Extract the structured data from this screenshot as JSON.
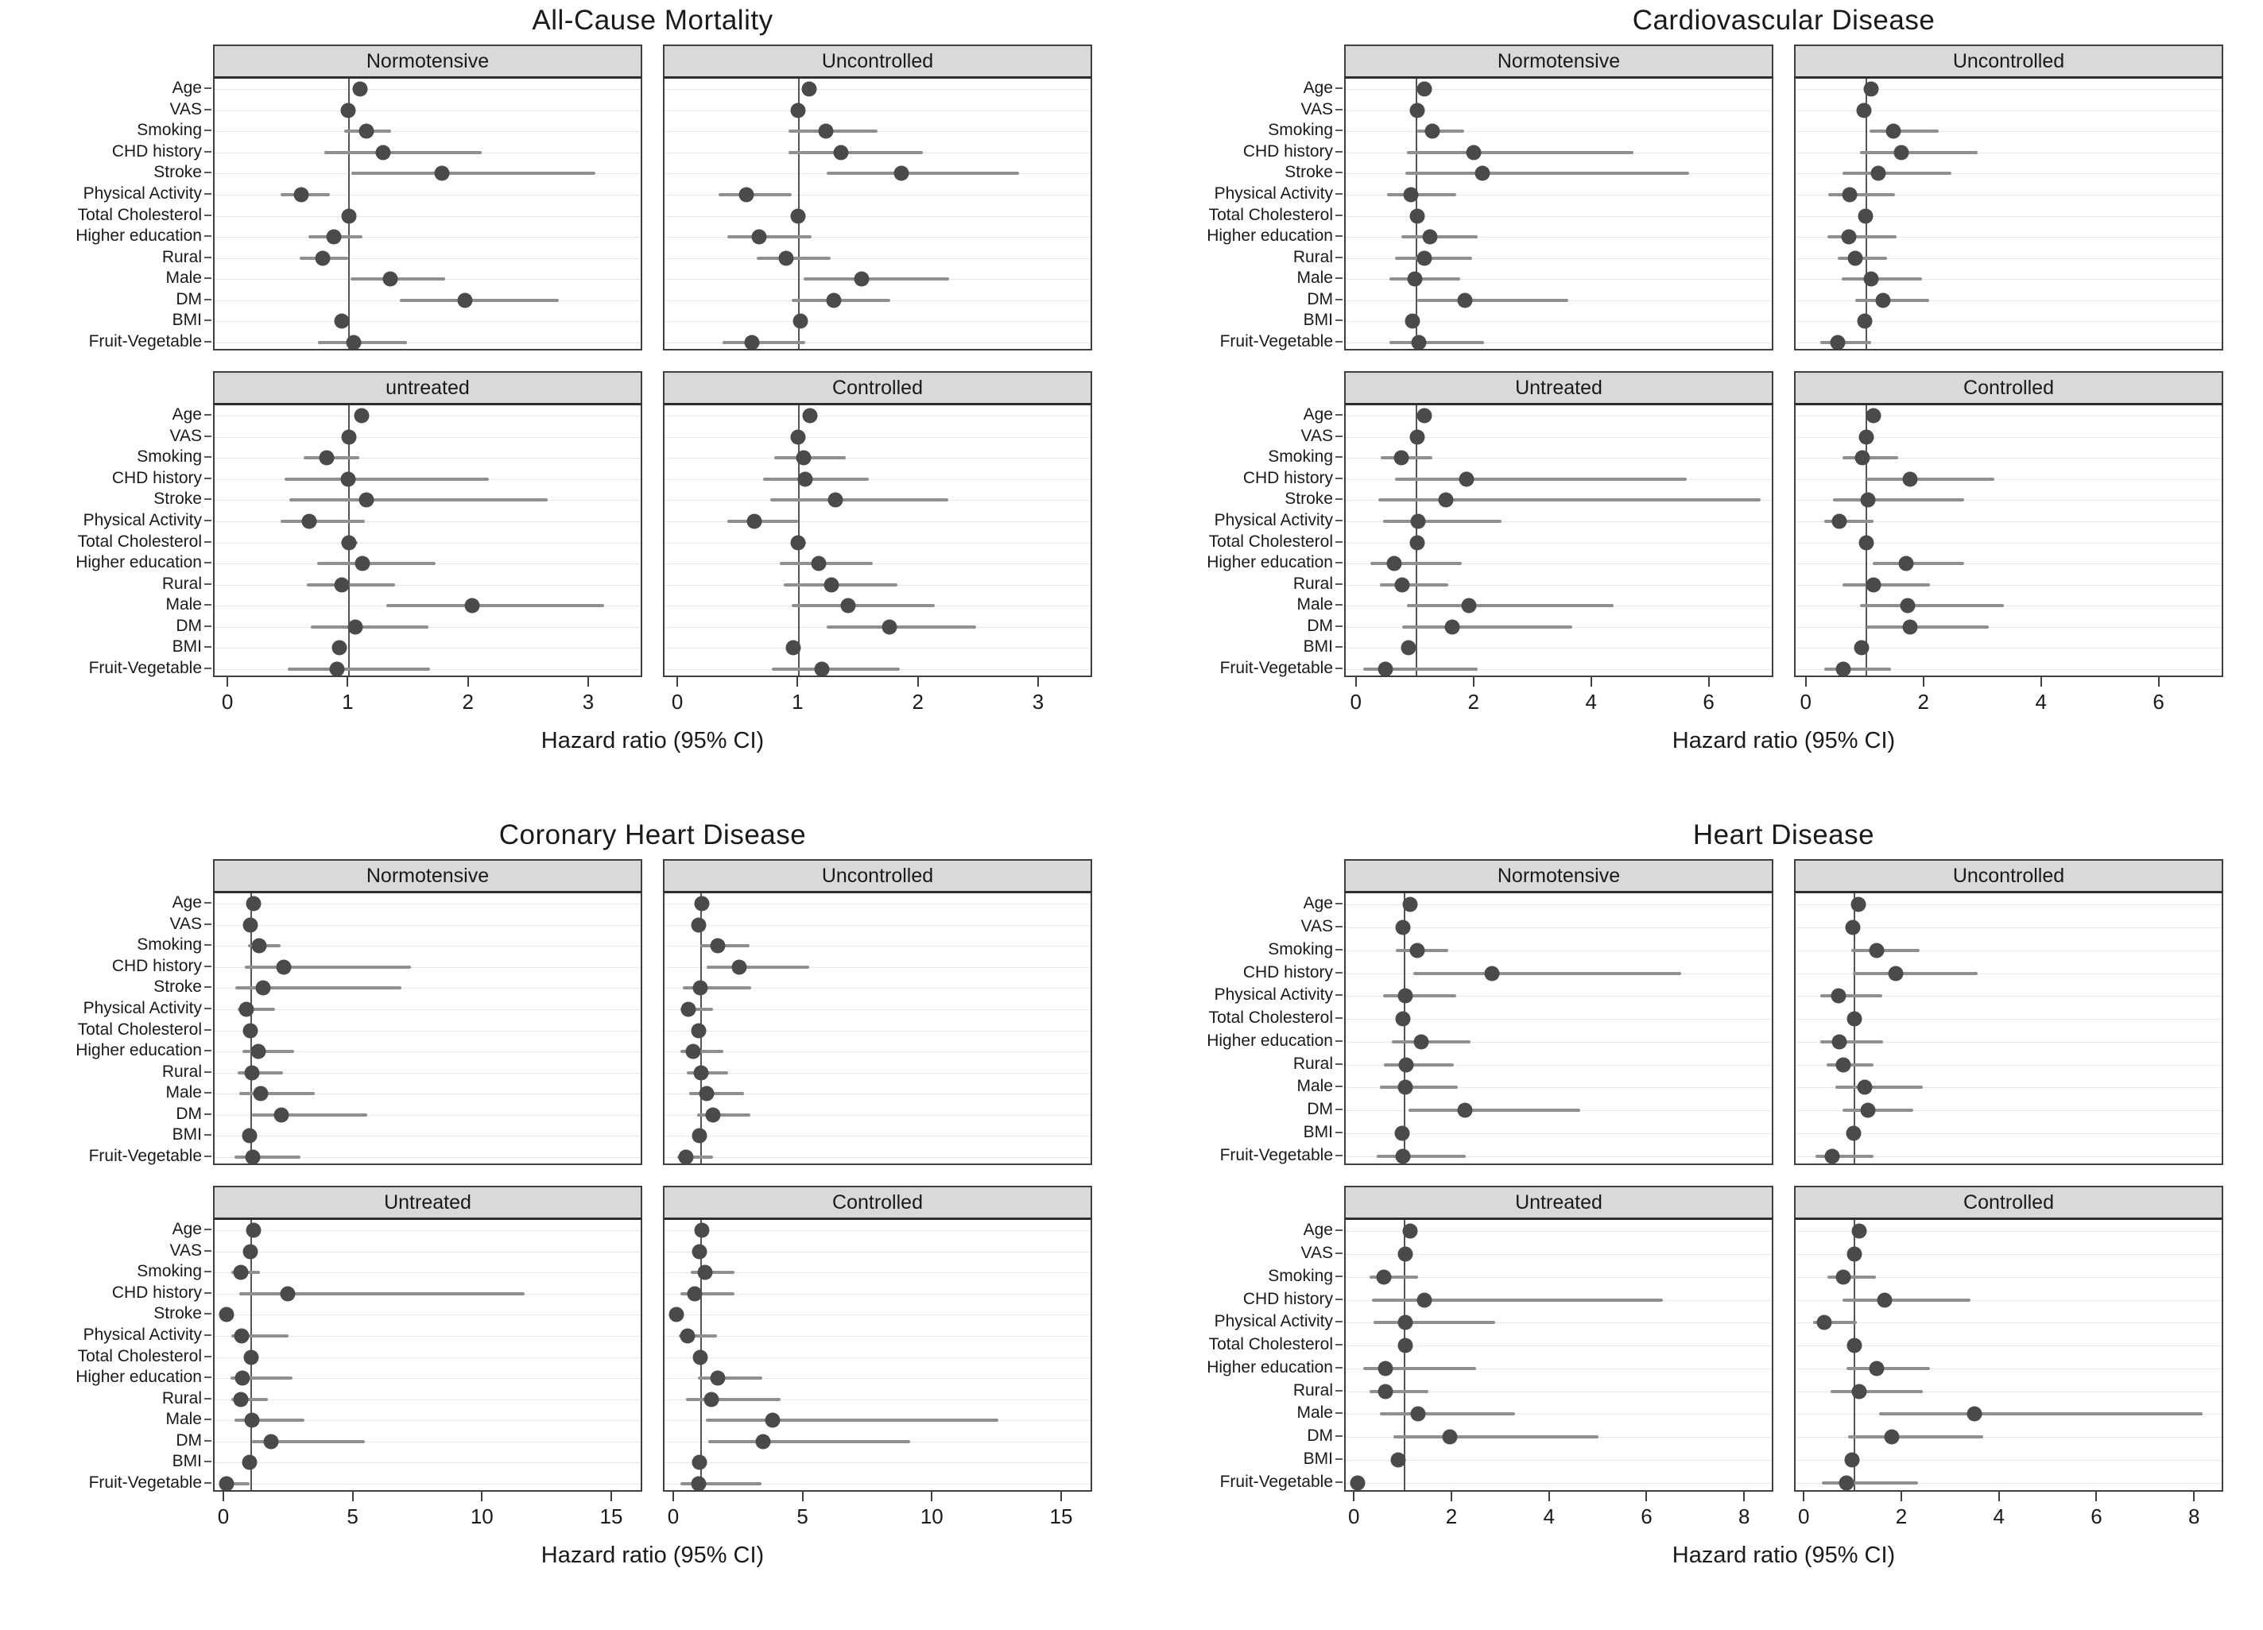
{
  "colors": {
    "dot": "#4a4a4a",
    "ci_line": "#8f8f8f",
    "reference_line": "#555555",
    "header_bg": "#d9d9d9",
    "panel_border": "#3f3f3f",
    "gridline": "#e7e7e7"
  },
  "chart_data": {
    "type": "scatter",
    "subtype": "forest-plot-grid",
    "note": "Four faceted forest plots of hazard ratios with 95% CI; vertical reference line at HR=1 in each panel.",
    "figures": [
      {
        "title": "All-Cause Mortality",
        "xlabel": "Hazard ratio (95% CI)",
        "x_ticks": [
          0,
          1,
          2,
          3
        ],
        "xlim": [
          -0.12,
          3.45
        ],
        "categories": [
          "Age",
          "VAS",
          "Smoking",
          "CHD history",
          "Stroke",
          "Physical Activity",
          "Total Cholesterol",
          "Higher education",
          "Rural",
          "Male",
          "DM",
          "BMI",
          "Fruit-Vegetable"
        ],
        "panels": [
          {
            "label": "Normotensive",
            "hr": [
              1.09,
              0.99,
              1.14,
              1.28,
              1.77,
              0.6,
              1.0,
              0.87,
              0.78,
              1.34,
              1.96,
              0.94,
              1.04
            ],
            "lo": [
              1.04,
              0.96,
              0.96,
              0.79,
              1.02,
              0.43,
              0.95,
              0.66,
              0.59,
              1.01,
              1.42,
              0.9,
              0.74
            ],
            "hi": [
              1.14,
              1.02,
              1.35,
              2.1,
              3.05,
              0.84,
              1.05,
              1.11,
              0.99,
              1.8,
              2.74,
              0.98,
              1.48
            ]
          },
          {
            "label": "Uncontrolled",
            "hr": [
              1.08,
              0.99,
              1.22,
              1.35,
              1.85,
              0.56,
              0.99,
              0.67,
              0.89,
              1.52,
              1.29,
              1.01,
              0.61
            ],
            "lo": [
              1.03,
              0.95,
              0.91,
              0.91,
              1.23,
              0.33,
              0.93,
              0.4,
              0.65,
              1.04,
              0.94,
              0.96,
              0.36
            ],
            "hi": [
              1.13,
              1.03,
              1.65,
              2.03,
              2.83,
              0.94,
              1.05,
              1.1,
              1.26,
              2.25,
              1.76,
              1.06,
              1.05
            ]
          },
          {
            "label": "untreated",
            "hr": [
              1.1,
              1.0,
              0.81,
              0.99,
              1.14,
              0.67,
              1.0,
              1.11,
              0.94,
              2.02,
              1.05,
              0.92,
              0.9
            ],
            "lo": [
              1.05,
              0.95,
              0.62,
              0.46,
              0.5,
              0.43,
              0.93,
              0.73,
              0.65,
              1.31,
              0.68,
              0.87,
              0.49
            ],
            "hi": [
              1.16,
              1.05,
              1.08,
              2.16,
              2.65,
              1.13,
              1.07,
              1.72,
              1.38,
              3.12,
              1.66,
              0.98,
              1.67
            ]
          },
          {
            "label": "Controlled",
            "hr": [
              1.09,
              0.99,
              1.04,
              1.05,
              1.3,
              0.63,
              0.99,
              1.16,
              1.27,
              1.41,
              1.75,
              0.95,
              1.19
            ],
            "lo": [
              1.04,
              0.94,
              0.79,
              0.7,
              0.76,
              0.4,
              0.93,
              0.84,
              0.87,
              0.94,
              1.23,
              0.9,
              0.77
            ],
            "hi": [
              1.15,
              1.04,
              1.39,
              1.58,
              2.24,
              0.99,
              1.06,
              1.61,
              1.82,
              2.13,
              2.47,
              1.0,
              1.84
            ]
          }
        ]
      },
      {
        "title": "Cardiovascular Disease",
        "xlabel": "Hazard ratio (95% CI)",
        "x_ticks": [
          0,
          2,
          4,
          6
        ],
        "xlim": [
          -0.2,
          7.1
        ],
        "categories": [
          "Age",
          "VAS",
          "Smoking",
          "CHD history",
          "Stroke",
          "Physical Activity",
          "Total Cholesterol",
          "Higher education",
          "Rural",
          "Male",
          "DM",
          "BMI",
          "Fruit-Vegetable"
        ],
        "panels": [
          {
            "label": "Normotensive",
            "hr": [
              1.14,
              1.01,
              1.28,
              1.98,
              2.12,
              0.91,
              1.01,
              1.23,
              1.14,
              0.97,
              1.83,
              0.94,
              1.04
            ],
            "lo": [
              1.06,
              0.96,
              1.01,
              0.84,
              0.81,
              0.5,
              0.95,
              0.74,
              0.64,
              0.54,
              1.01,
              0.88,
              0.54
            ],
            "hi": [
              1.23,
              1.06,
              1.81,
              4.7,
              5.64,
              1.68,
              1.07,
              2.05,
              1.95,
              1.75,
              3.59,
              1.0,
              2.15
            ]
          },
          {
            "label": "Uncontrolled",
            "hr": [
              1.08,
              0.96,
              1.46,
              1.6,
              1.21,
              0.72,
              0.99,
              0.71,
              0.82,
              1.08,
              1.29,
              0.98,
              0.51
            ],
            "lo": [
              1.0,
              0.9,
              1.06,
              0.89,
              0.6,
              0.36,
              0.92,
              0.34,
              0.51,
              0.59,
              0.82,
              0.92,
              0.22
            ],
            "hi": [
              1.16,
              1.02,
              2.24,
              2.9,
              2.45,
              1.49,
              1.06,
              1.52,
              1.35,
              1.95,
              2.07,
              1.04,
              1.08
            ]
          },
          {
            "label": "Untreated",
            "hr": [
              1.14,
              1.01,
              0.74,
              1.85,
              1.51,
              1.03,
              1.01,
              0.62,
              0.76,
              1.9,
              1.61,
              0.87,
              0.48
            ],
            "lo": [
              1.06,
              0.95,
              0.4,
              0.64,
              0.36,
              0.44,
              0.94,
              0.22,
              0.38,
              0.84,
              0.76,
              0.8,
              0.1
            ],
            "hi": [
              1.23,
              1.07,
              1.28,
              5.6,
              6.85,
              2.45,
              1.08,
              1.78,
              1.54,
              4.35,
              3.65,
              0.94,
              2.05
            ]
          },
          {
            "label": "Controlled",
            "hr": [
              1.12,
              1.0,
              0.93,
              1.75,
              1.03,
              0.55,
              1.0,
              1.68,
              1.12,
              1.71,
              1.75,
              0.92,
              0.61
            ],
            "lo": [
              1.04,
              0.94,
              0.6,
              1.0,
              0.43,
              0.29,
              0.93,
              1.11,
              0.6,
              0.89,
              1.0,
              0.86,
              0.28
            ],
            "hi": [
              1.21,
              1.06,
              1.54,
              3.18,
              2.66,
              1.13,
              1.07,
              2.66,
              2.09,
              3.34,
              3.08,
              0.98,
              1.42
            ]
          }
        ]
      },
      {
        "title": "Coronary Heart Disease",
        "xlabel": "Hazard ratio (95% CI)",
        "x_ticks": [
          0,
          5,
          10,
          15
        ],
        "xlim": [
          -0.4,
          16.2
        ],
        "categories": [
          "Age",
          "VAS",
          "Smoking",
          "CHD history",
          "Stroke",
          "Physical Activity",
          "Total Cholesterol",
          "Higher education",
          "Rural",
          "Male",
          "DM",
          "BMI",
          "Fruit-Vegetable"
        ],
        "panels": [
          {
            "label": "Normotensive",
            "hr": [
              1.11,
              0.99,
              1.33,
              2.26,
              1.46,
              0.82,
              0.99,
              1.29,
              1.04,
              1.39,
              2.19,
              0.96,
              1.07
            ],
            "lo": [
              1.0,
              0.92,
              0.89,
              0.77,
              0.41,
              0.48,
              0.91,
              0.67,
              0.48,
              0.56,
              1.04,
              0.88,
              0.38
            ],
            "hi": [
              1.23,
              1.06,
              2.16,
              7.19,
              6.83,
              1.94,
              1.08,
              2.67,
              2.23,
              3.47,
              5.51,
              1.04,
              2.92
            ]
          },
          {
            "label": "Uncontrolled",
            "hr": [
              1.04,
              0.92,
              1.66,
              2.5,
              0.99,
              0.52,
              0.92,
              0.72,
              1.01,
              1.22,
              1.48,
              0.96,
              0.43
            ],
            "lo": [
              0.95,
              0.85,
              0.99,
              1.22,
              0.31,
              0.2,
              0.84,
              0.22,
              0.47,
              0.55,
              0.87,
              0.88,
              0.1
            ],
            "hi": [
              1.14,
              1.0,
              2.88,
              5.21,
              2.94,
              1.46,
              1.01,
              1.89,
              2.06,
              2.67,
              2.92,
              1.04,
              1.48
            ]
          },
          {
            "label": "Untreated",
            "hr": [
              1.11,
              0.99,
              0.6,
              2.42,
              0.05,
              0.63,
              1.02,
              0.67,
              0.6,
              1.04,
              1.79,
              0.95,
              0.05
            ],
            "lo": [
              1.0,
              0.91,
              0.26,
              0.56,
              0.05,
              0.26,
              0.93,
              0.2,
              0.26,
              0.38,
              1.04,
              0.86,
              0.05
            ],
            "hi": [
              1.22,
              1.08,
              1.36,
              11.6,
              0.05,
              2.45,
              1.12,
              2.6,
              1.65,
              3.08,
              5.4,
              1.05,
              0.95
            ]
          },
          {
            "label": "Controlled",
            "hr": [
              1.05,
              0.96,
              1.17,
              0.76,
              0.05,
              0.49,
              0.99,
              1.66,
              1.4,
              3.79,
              3.41,
              0.96,
              0.92
            ],
            "lo": [
              0.95,
              0.88,
              0.61,
              0.23,
              0.05,
              0.14,
              0.91,
              0.9,
              0.43,
              1.19,
              1.28,
              0.88,
              0.23
            ],
            "hi": [
              1.16,
              1.04,
              2.3,
              2.3,
              0.05,
              1.63,
              1.08,
              3.38,
              4.1,
              12.5,
              9.11,
              1.05,
              3.35
            ]
          }
        ]
      },
      {
        "title": "Heart Disease",
        "xlabel": "Hazard ratio (95% CI)",
        "x_ticks": [
          0,
          2,
          4,
          6,
          8
        ],
        "xlim": [
          -0.2,
          8.6
        ],
        "categories": [
          "Age",
          "VAS",
          "Smoking",
          "CHD history",
          "Physical Activity",
          "Total Cholesterol",
          "Higher education",
          "Rural",
          "Male",
          "DM",
          "BMI",
          "Fruit-Vegetable"
        ],
        "panels": [
          {
            "label": "Normotensive",
            "hr": [
              1.12,
              0.98,
              1.26,
              2.8,
              1.02,
              0.98,
              1.34,
              1.04,
              1.02,
              2.24,
              0.95,
              0.98
            ],
            "lo": [
              1.04,
              0.92,
              0.83,
              1.18,
              0.56,
              0.91,
              0.75,
              0.58,
              0.5,
              1.08,
              0.89,
              0.44
            ],
            "hi": [
              1.2,
              1.04,
              1.91,
              6.67,
              2.06,
              1.05,
              2.36,
              2.01,
              2.09,
              4.6,
              1.01,
              2.26
            ]
          },
          {
            "label": "Uncontrolled",
            "hr": [
              1.09,
              0.97,
              1.47,
              1.86,
              0.68,
              1.0,
              0.7,
              0.78,
              1.21,
              1.29,
              0.99,
              0.55
            ],
            "lo": [
              1.02,
              0.91,
              0.94,
              0.97,
              0.31,
              0.93,
              0.31,
              0.44,
              0.61,
              0.76,
              0.92,
              0.21
            ],
            "hi": [
              1.17,
              1.03,
              2.34,
              3.53,
              1.57,
              1.07,
              1.6,
              1.39,
              2.41,
              2.22,
              1.06,
              1.39
            ]
          },
          {
            "label": "Untreated",
            "hr": [
              1.12,
              1.03,
              0.58,
              1.41,
              1.02,
              1.02,
              0.62,
              0.62,
              1.28,
              1.93,
              0.87,
              0.05
            ],
            "lo": [
              1.04,
              0.96,
              0.29,
              0.33,
              0.37,
              0.94,
              0.16,
              0.29,
              0.5,
              0.77,
              0.79,
              0.05
            ],
            "hi": [
              1.21,
              1.1,
              1.28,
              6.3,
              2.86,
              1.1,
              2.47,
              1.49,
              3.27,
              4.99,
              0.95,
              0.05
            ]
          },
          {
            "label": "Controlled",
            "hr": [
              1.11,
              1.0,
              0.78,
              1.62,
              0.39,
              1.0,
              1.47,
              1.11,
              3.47,
              1.77,
              0.96,
              0.84
            ],
            "lo": [
              1.03,
              0.94,
              0.45,
              0.76,
              0.16,
              0.93,
              0.84,
              0.51,
              1.51,
              0.87,
              0.89,
              0.34
            ],
            "hi": [
              1.19,
              1.06,
              1.44,
              3.38,
              1.05,
              1.07,
              2.56,
              2.4,
              8.15,
              3.65,
              1.03,
              2.31
            ]
          }
        ]
      }
    ]
  }
}
